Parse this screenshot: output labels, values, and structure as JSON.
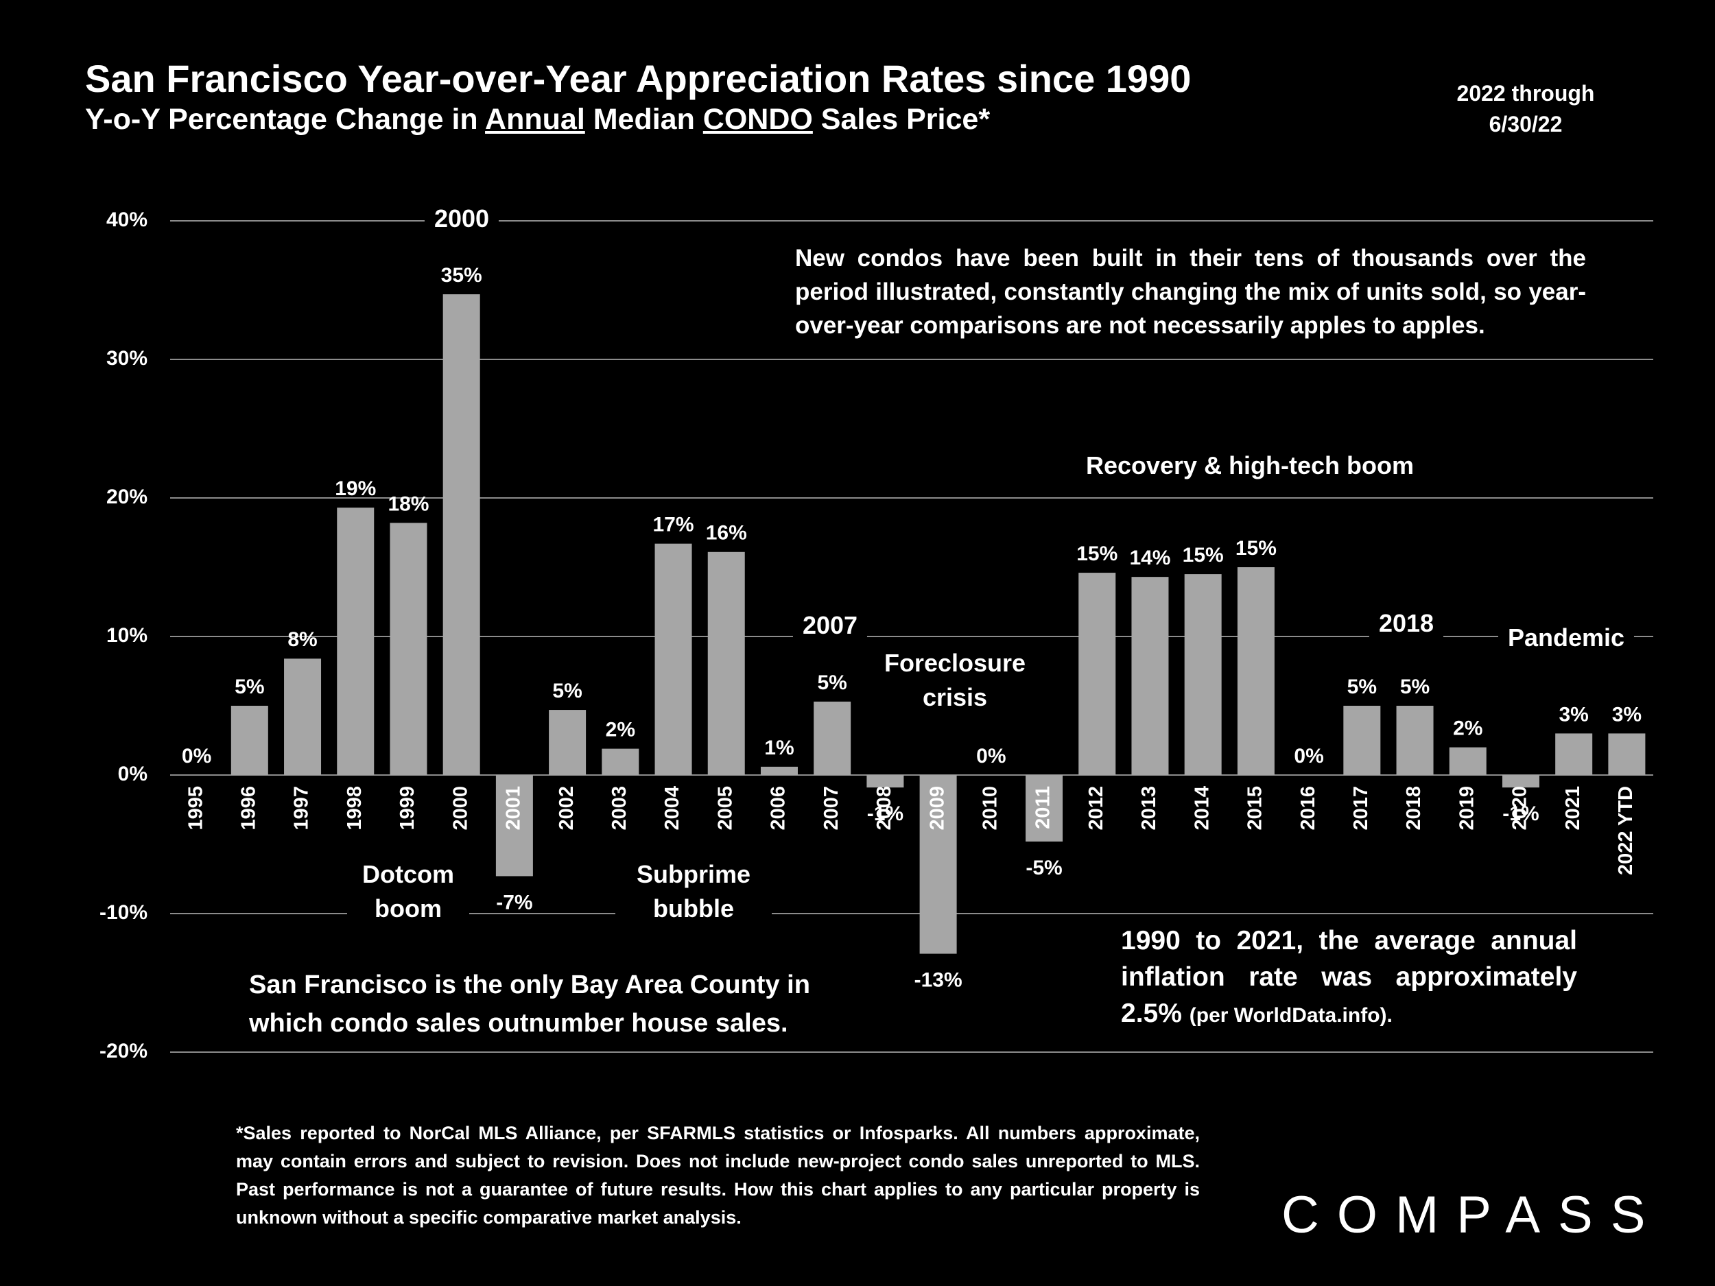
{
  "chart_data": {
    "type": "bar",
    "title": "San Francisco Year-over-Year Appreciation Rates since 1990",
    "subtitle": [
      "Y-o-Y Percentage Change in ",
      "Annual",
      " Median ",
      "CONDO",
      " Sales Price*"
    ],
    "side_note": [
      "2022 through",
      "6/30/22"
    ],
    "categories": [
      "1995",
      "1996",
      "1997",
      "1998",
      "1999",
      "2000",
      "2001",
      "2002",
      "2003",
      "2004",
      "2005",
      "2006",
      "2007",
      "2008",
      "2009",
      "2010",
      "2011",
      "2012",
      "2013",
      "2014",
      "2015",
      "2016",
      "2017",
      "2018",
      "2019",
      "2020",
      "2021",
      "2022 YTD"
    ],
    "values": [
      0,
      5,
      8.4,
      19.3,
      18.2,
      34.7,
      -7.3,
      4.7,
      1.9,
      16.7,
      16.1,
      0.6,
      5.3,
      -0.9,
      -12.9,
      0,
      -4.8,
      14.6,
      14.3,
      14.5,
      15,
      0,
      5,
      5,
      2,
      -0.9,
      3,
      3
    ],
    "value_labels": [
      "0%",
      "5%",
      "8%",
      "19%",
      "18%",
      "35%",
      "-7%",
      "5%",
      "2%",
      "17%",
      "16%",
      "1%",
      "5%",
      "-1%",
      "-13%",
      "0%",
      "-5%",
      "15%",
      "14%",
      "15%",
      "15%",
      "0%",
      "5%",
      "5%",
      "2%",
      "-1%",
      "3%",
      "3%"
    ],
    "color": "#a6a6a6",
    "ylim": [
      -20,
      40
    ],
    "yticks": [
      {
        "value": -20,
        "label": "-20%"
      },
      {
        "value": -10,
        "label": "-10%"
      },
      {
        "value": 0,
        "label": "0%"
      },
      {
        "value": 10,
        "label": "10%"
      },
      {
        "value": 20,
        "label": "20%"
      },
      {
        "value": 30,
        "label": "30%"
      },
      {
        "value": 40,
        "label": "40%"
      }
    ],
    "grid": true,
    "annotations": [
      "2000",
      "Dotcom boom",
      "Subprime bubble",
      "2007",
      "Foreclosure crisis",
      "Recovery & high-tech boom",
      "2018",
      "Pandemic"
    ],
    "notes": [
      "New condos have been built in their tens of thousands over the period illustrated, constantly changing the mix of units sold, so year-over-year comparisons are not necessarily apples to apples.",
      "San Francisco is the only Bay Area County in which condo sales outnumber house sales.",
      [
        "1990 to 2021, the average annual inflation rate was approximately 2.5%",
        "(per WorldData.info)."
      ]
    ],
    "footnote": "*Sales reported to NorCal MLS Alliance, per SFARMLS statistics or Infosparks. All numbers approximate, may contain errors and subject to revision. Does not include new-project condo sales unreported to MLS. Past performance is not a guarantee of future results. How this chart applies to any particular property is unknown without a specific comparative market analysis.",
    "logo": "COMPASS"
  }
}
